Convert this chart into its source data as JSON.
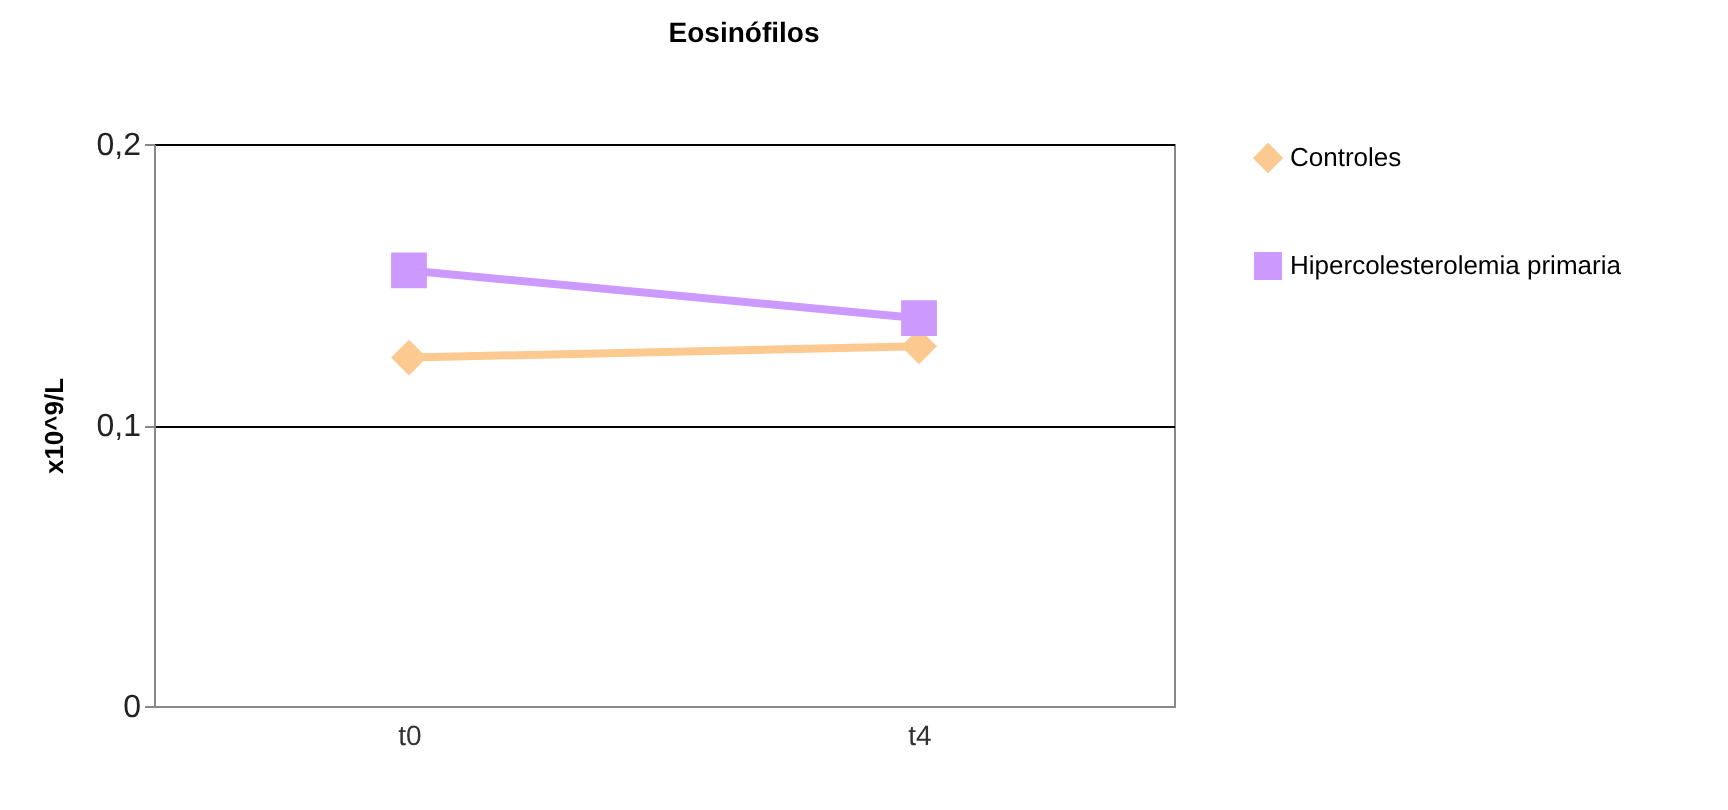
{
  "chart_data": {
    "type": "line",
    "title": "Eosinófilos",
    "ylabel": "x10^9/L",
    "categories": [
      "t0",
      "t4"
    ],
    "series": [
      {
        "name": "Controles",
        "color": "#fcc990",
        "marker": "diamond",
        "values": [
          0.124,
          0.128
        ]
      },
      {
        "name": "Hipercolesterolemia primaria",
        "color": "#cc99ff",
        "marker": "square",
        "values": [
          0.155,
          0.138
        ]
      }
    ],
    "ylim": [
      0,
      0.2
    ],
    "yticks": [
      {
        "value": 0,
        "label": "0"
      },
      {
        "value": 0.1,
        "label": "0,1"
      },
      {
        "value": 0.2,
        "label": "0,2"
      }
    ],
    "grid": "y",
    "legend": "right"
  }
}
